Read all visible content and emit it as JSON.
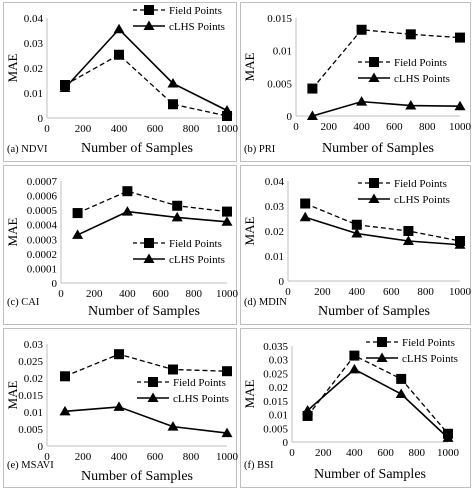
{
  "chart_data": [
    {
      "type": "line",
      "caption": "(a)  NDVI",
      "xlabel": "Number of Samples",
      "ylabel": "MAE",
      "x": [
        100,
        400,
        700,
        1000
      ],
      "xticks": [
        "0",
        "200",
        "400",
        "600",
        "800",
        "1000"
      ],
      "xlim": [
        0,
        1000
      ],
      "ylim": [
        0,
        0.04
      ],
      "yticks": [
        "0",
        "0.01",
        "0.02",
        "0.03",
        "0.04"
      ],
      "legend_position": "top-right",
      "series": [
        {
          "name": "Field Points",
          "style": "dashed",
          "marker": "square",
          "values": [
            0.0132,
            0.0253,
            0.0055,
            0.0008
          ]
        },
        {
          "name": "cLHS Points",
          "style": "solid",
          "marker": "triangle",
          "values": [
            0.012,
            0.0355,
            0.0138,
            0.003
          ]
        }
      ]
    },
    {
      "type": "line",
      "caption": "(b) PRI",
      "xlabel": "Number of Samples",
      "ylabel": "MAE",
      "x": [
        100,
        400,
        700,
        1000
      ],
      "xticks": [
        "0",
        "200",
        "400",
        "600",
        "800",
        "1000"
      ],
      "xlim": [
        0,
        1000
      ],
      "ylim": [
        0,
        0.015
      ],
      "yticks": [
        "0",
        "0.005",
        "0.01",
        "0.015"
      ],
      "legend_position": "center-right",
      "series": [
        {
          "name": "Field Points",
          "style": "dashed",
          "marker": "square",
          "values": [
            0.0042,
            0.0132,
            0.0125,
            0.012
          ]
        },
        {
          "name": "cLHS Points",
          "style": "solid",
          "marker": "triangle",
          "values": [
            0.0,
            0.0022,
            0.0016,
            0.0015
          ]
        }
      ]
    },
    {
      "type": "line",
      "caption": "(c) CAI",
      "xlabel": "Number of Samples",
      "ylabel": "MAE",
      "x": [
        100,
        400,
        700,
        1000
      ],
      "xticks": [
        "0",
        "200",
        "400",
        "600",
        "800",
        "1000"
      ],
      "xlim": [
        0,
        1000
      ],
      "ylim": [
        0,
        0.0007
      ],
      "yticks": [
        "0",
        "0.0001",
        "0.0002",
        "0.0003",
        "0.0004",
        "0.0005",
        "0.0006",
        "0.0007"
      ],
      "legend_position": "bottom-right",
      "series": [
        {
          "name": "Field Points",
          "style": "dashed",
          "marker": "square",
          "values": [
            0.00048,
            0.00063,
            0.00053,
            0.00049
          ]
        },
        {
          "name": "cLHS Points",
          "style": "solid",
          "marker": "triangle",
          "values": [
            0.00033,
            0.00049,
            0.00045,
            0.00042
          ]
        }
      ]
    },
    {
      "type": "line",
      "caption": "(d) MDIN",
      "xlabel": "Number of Samples",
      "ylabel": "MAE",
      "x": [
        100,
        400,
        700,
        1000
      ],
      "xticks": [
        "0",
        "200",
        "400",
        "600",
        "800",
        "1000"
      ],
      "xlim": [
        0,
        1000
      ],
      "ylim": [
        0,
        0.04
      ],
      "yticks": [
        "0",
        "0.01",
        "0.02",
        "0.03",
        "0.04"
      ],
      "legend_position": "top-right",
      "series": [
        {
          "name": "Field Points",
          "style": "dashed",
          "marker": "square",
          "values": [
            0.031,
            0.0225,
            0.02,
            0.016
          ]
        },
        {
          "name": "cLHS Points",
          "style": "solid",
          "marker": "triangle",
          "values": [
            0.0255,
            0.019,
            0.016,
            0.0145
          ]
        }
      ]
    },
    {
      "type": "line",
      "caption": "(e) MSAVI",
      "xlabel": "Number of Samples",
      "ylabel": "MAE",
      "x": [
        100,
        400,
        700,
        1000
      ],
      "xticks": [
        "0",
        "200",
        "400",
        "600",
        "800",
        "1000"
      ],
      "xlim": [
        0,
        1000
      ],
      "ylim": [
        0,
        0.03
      ],
      "yticks": [
        "0",
        "0.005",
        "0.01",
        "0.015",
        "0.02",
        "0.025",
        "0.03"
      ],
      "legend_position": "center-right",
      "series": [
        {
          "name": "Field Points",
          "style": "dashed",
          "marker": "square",
          "values": [
            0.0205,
            0.027,
            0.0225,
            0.022
          ]
        },
        {
          "name": "cLHS Points",
          "style": "solid",
          "marker": "triangle",
          "values": [
            0.0102,
            0.0115,
            0.0057,
            0.0038
          ]
        }
      ]
    },
    {
      "type": "line",
      "caption": "(f) BSI",
      "xlabel": "Number of Samples",
      "ylabel": "MAE",
      "x": [
        100,
        400,
        700,
        1000
      ],
      "xticks": [
        "0",
        "200",
        "400",
        "600",
        "800",
        "1000"
      ],
      "xlim": [
        0,
        1000
      ],
      "ylim": [
        0,
        0.035
      ],
      "yticks": [
        "0",
        "0.005",
        "0.01",
        "0.015",
        "0.02",
        "0.025",
        "0.03",
        "0.035"
      ],
      "legend_position": "top-right",
      "series": [
        {
          "name": "Field Points",
          "style": "dashed",
          "marker": "square",
          "values": [
            0.0095,
            0.0315,
            0.023,
            0.003
          ]
        },
        {
          "name": "cLHS Points",
          "style": "solid",
          "marker": "triangle",
          "values": [
            0.0115,
            0.0265,
            0.0175,
            0.0015
          ]
        }
      ]
    }
  ]
}
